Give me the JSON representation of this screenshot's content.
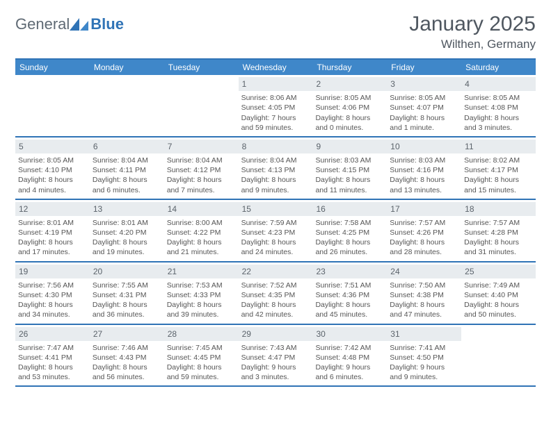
{
  "brand": {
    "text_general": "General",
    "text_blue": "Blue",
    "glyph_color": "#2f73b6"
  },
  "header": {
    "month_title": "January 2025",
    "location": "Wilthen, Germany"
  },
  "calendar": {
    "type": "table",
    "header_bg": "#3f87c9",
    "header_text_color": "#ffffff",
    "rule_color": "#2f73b6",
    "daynum_bg": "#e8ecef",
    "background_color": "#ffffff",
    "text_color": "#555555",
    "body_fontsize": 10.5,
    "header_fontsize": 12,
    "daynum_fontsize": 12,
    "days_of_week": [
      "Sunday",
      "Monday",
      "Tuesday",
      "Wednesday",
      "Thursday",
      "Friday",
      "Saturday"
    ],
    "weeks": [
      [
        null,
        null,
        null,
        {
          "n": "1",
          "sunrise": "8:06 AM",
          "sunset": "4:05 PM",
          "daylight": "7 hours and 59 minutes."
        },
        {
          "n": "2",
          "sunrise": "8:05 AM",
          "sunset": "4:06 PM",
          "daylight": "8 hours and 0 minutes."
        },
        {
          "n": "3",
          "sunrise": "8:05 AM",
          "sunset": "4:07 PM",
          "daylight": "8 hours and 1 minute."
        },
        {
          "n": "4",
          "sunrise": "8:05 AM",
          "sunset": "4:08 PM",
          "daylight": "8 hours and 3 minutes."
        }
      ],
      [
        {
          "n": "5",
          "sunrise": "8:05 AM",
          "sunset": "4:10 PM",
          "daylight": "8 hours and 4 minutes."
        },
        {
          "n": "6",
          "sunrise": "8:04 AM",
          "sunset": "4:11 PM",
          "daylight": "8 hours and 6 minutes."
        },
        {
          "n": "7",
          "sunrise": "8:04 AM",
          "sunset": "4:12 PM",
          "daylight": "8 hours and 7 minutes."
        },
        {
          "n": "8",
          "sunrise": "8:04 AM",
          "sunset": "4:13 PM",
          "daylight": "8 hours and 9 minutes."
        },
        {
          "n": "9",
          "sunrise": "8:03 AM",
          "sunset": "4:15 PM",
          "daylight": "8 hours and 11 minutes."
        },
        {
          "n": "10",
          "sunrise": "8:03 AM",
          "sunset": "4:16 PM",
          "daylight": "8 hours and 13 minutes."
        },
        {
          "n": "11",
          "sunrise": "8:02 AM",
          "sunset": "4:17 PM",
          "daylight": "8 hours and 15 minutes."
        }
      ],
      [
        {
          "n": "12",
          "sunrise": "8:01 AM",
          "sunset": "4:19 PM",
          "daylight": "8 hours and 17 minutes."
        },
        {
          "n": "13",
          "sunrise": "8:01 AM",
          "sunset": "4:20 PM",
          "daylight": "8 hours and 19 minutes."
        },
        {
          "n": "14",
          "sunrise": "8:00 AM",
          "sunset": "4:22 PM",
          "daylight": "8 hours and 21 minutes."
        },
        {
          "n": "15",
          "sunrise": "7:59 AM",
          "sunset": "4:23 PM",
          "daylight": "8 hours and 24 minutes."
        },
        {
          "n": "16",
          "sunrise": "7:58 AM",
          "sunset": "4:25 PM",
          "daylight": "8 hours and 26 minutes."
        },
        {
          "n": "17",
          "sunrise": "7:57 AM",
          "sunset": "4:26 PM",
          "daylight": "8 hours and 28 minutes."
        },
        {
          "n": "18",
          "sunrise": "7:57 AM",
          "sunset": "4:28 PM",
          "daylight": "8 hours and 31 minutes."
        }
      ],
      [
        {
          "n": "19",
          "sunrise": "7:56 AM",
          "sunset": "4:30 PM",
          "daylight": "8 hours and 34 minutes."
        },
        {
          "n": "20",
          "sunrise": "7:55 AM",
          "sunset": "4:31 PM",
          "daylight": "8 hours and 36 minutes."
        },
        {
          "n": "21",
          "sunrise": "7:53 AM",
          "sunset": "4:33 PM",
          "daylight": "8 hours and 39 minutes."
        },
        {
          "n": "22",
          "sunrise": "7:52 AM",
          "sunset": "4:35 PM",
          "daylight": "8 hours and 42 minutes."
        },
        {
          "n": "23",
          "sunrise": "7:51 AM",
          "sunset": "4:36 PM",
          "daylight": "8 hours and 45 minutes."
        },
        {
          "n": "24",
          "sunrise": "7:50 AM",
          "sunset": "4:38 PM",
          "daylight": "8 hours and 47 minutes."
        },
        {
          "n": "25",
          "sunrise": "7:49 AM",
          "sunset": "4:40 PM",
          "daylight": "8 hours and 50 minutes."
        }
      ],
      [
        {
          "n": "26",
          "sunrise": "7:47 AM",
          "sunset": "4:41 PM",
          "daylight": "8 hours and 53 minutes."
        },
        {
          "n": "27",
          "sunrise": "7:46 AM",
          "sunset": "4:43 PM",
          "daylight": "8 hours and 56 minutes."
        },
        {
          "n": "28",
          "sunrise": "7:45 AM",
          "sunset": "4:45 PM",
          "daylight": "8 hours and 59 minutes."
        },
        {
          "n": "29",
          "sunrise": "7:43 AM",
          "sunset": "4:47 PM",
          "daylight": "9 hours and 3 minutes."
        },
        {
          "n": "30",
          "sunrise": "7:42 AM",
          "sunset": "4:48 PM",
          "daylight": "9 hours and 6 minutes."
        },
        {
          "n": "31",
          "sunrise": "7:41 AM",
          "sunset": "4:50 PM",
          "daylight": "9 hours and 9 minutes."
        },
        null
      ]
    ]
  }
}
